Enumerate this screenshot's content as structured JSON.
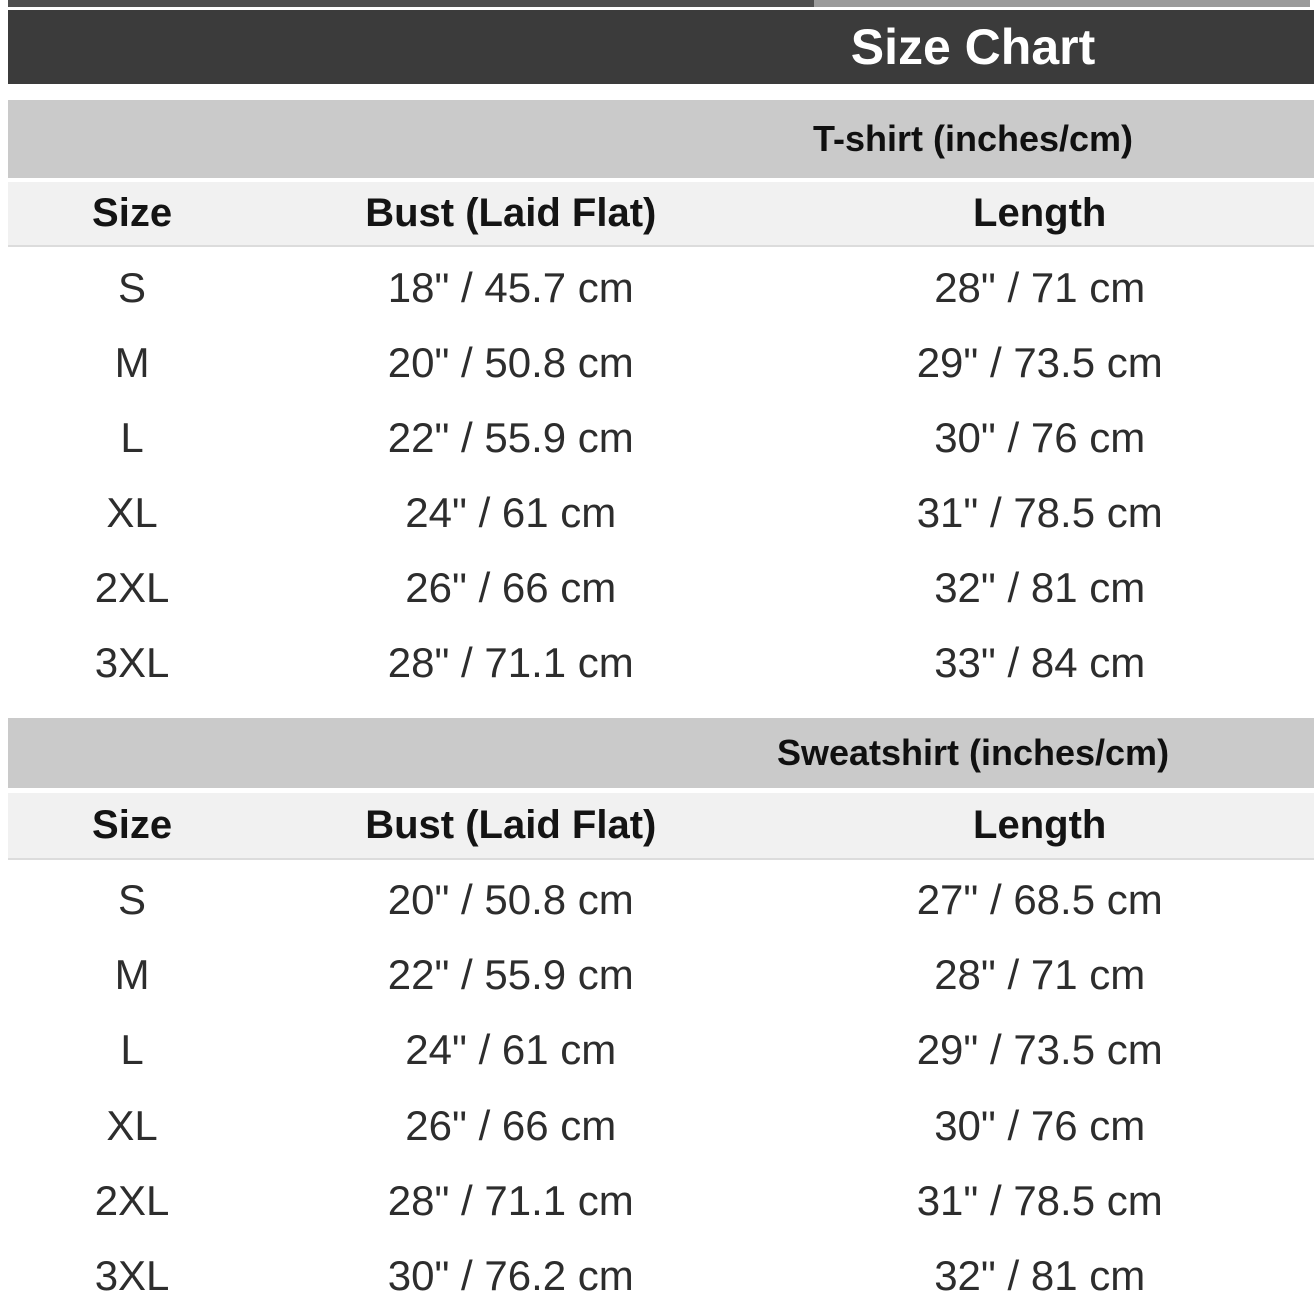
{
  "header": {
    "title": "Size Chart"
  },
  "chart_data": [
    {
      "type": "table",
      "title": "T-shirt (inches/cm)",
      "columns": [
        "Size",
        "Bust (Laid Flat)",
        "Length"
      ],
      "rows": [
        [
          "S",
          "18\" / 45.7 cm",
          "28\" / 71 cm"
        ],
        [
          "M",
          "20\" / 50.8 cm",
          "29\" / 73.5 cm"
        ],
        [
          "L",
          "22\" / 55.9 cm",
          "30\" / 76 cm"
        ],
        [
          "XL",
          "24\" / 61 cm",
          "31\" / 78.5 cm"
        ],
        [
          "2XL",
          "26\" / 66 cm",
          "32\" / 81 cm"
        ],
        [
          "3XL",
          "28\" / 71.1 cm",
          "33\" / 84 cm"
        ]
      ]
    },
    {
      "type": "table",
      "title": "Sweatshirt (inches/cm)",
      "columns": [
        "Size",
        "Bust (Laid Flat)",
        "Length"
      ],
      "rows": [
        [
          "S",
          "20\" / 50.8 cm",
          "27\" / 68.5 cm"
        ],
        [
          "M",
          "22\" / 55.9 cm",
          "28\" / 71 cm"
        ],
        [
          "L",
          "24\" / 61 cm",
          "29\" / 73.5 cm"
        ],
        [
          "XL",
          "26\" / 66 cm",
          "30\" / 76 cm"
        ],
        [
          "2XL",
          "28\" / 71.1 cm",
          "31\" / 78.5 cm"
        ],
        [
          "3XL",
          "30\" / 76.2 cm",
          "32\" / 81 cm"
        ]
      ]
    }
  ],
  "colors": {
    "title_bar_bg": "#3b3b3b",
    "title_text": "#ffffff",
    "section_band_bg": "#cacaca",
    "column_header_bg": "#f1f1f1",
    "row_bg": "#ffffff",
    "data_text": "#2d2d2d"
  }
}
